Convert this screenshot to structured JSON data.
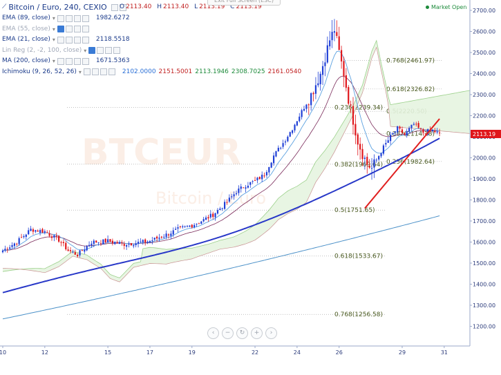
{
  "header": {
    "title": "Bitcoin / Euro, 240, CEXIO",
    "ohlc": [
      {
        "k": "O",
        "v": "2113.40"
      },
      {
        "k": "H",
        "v": "2113.40"
      },
      {
        "k": "L",
        "v": "2113.19"
      },
      {
        "k": "C",
        "v": "2113.19"
      }
    ],
    "market_status": "Market Open",
    "exit_fullscreen": "Exit Full Screen (ESC)"
  },
  "indicators": [
    {
      "label": "EMA (89, close)",
      "values": [
        "1982.6272"
      ],
      "active": true,
      "color": "#1a3a8a"
    },
    {
      "label": "EMA (55, close)",
      "values": [],
      "active": false,
      "color": "#a0a8b8"
    },
    {
      "label": "EMA (21, close)",
      "values": [
        "2118.5518"
      ],
      "active": true,
      "color": "#1a3a8a"
    },
    {
      "label": "Lin Reg (2, -2, 100, close)",
      "values": [],
      "active": false,
      "color": "#a0a8b8"
    },
    {
      "label": "MA (200, close)",
      "values": [
        "1671.5363"
      ],
      "active": true,
      "color": "#1a3a8a"
    },
    {
      "label": "Ichimoku (9, 26, 52, 26)",
      "values": [
        "2102.0000",
        "2151.5001",
        "2113.1946",
        "2308.7025",
        "2161.0540"
      ],
      "active": true,
      "color": "#1a3a8a"
    }
  ],
  "nav_buttons": [
    "zoom-out",
    "zoom-in",
    "reset",
    "scroll-left",
    "scroll-right"
  ],
  "chart_data": {
    "type": "candlestick",
    "symbol": "BTCEUR",
    "watermark": "BTCEUR",
    "watermark_sub": "Bitcoin / Euro",
    "ylim": [
      1115,
      2730
    ],
    "y_ticks": [
      1200,
      1300,
      1400,
      1500,
      1600,
      1700,
      1800,
      1900,
      2000,
      2100,
      2200,
      2300,
      2400,
      2500,
      2600,
      2700
    ],
    "y_tick_labels": [
      "1200.00",
      "1300.00",
      "1400.00",
      "1500.00",
      "1600.00",
      "1700.00",
      "1800.00",
      "1900.00",
      "2000.00",
      "2100.00",
      "2200.00",
      "2300.00",
      "2400.00",
      "2500.00",
      "2600.00",
      "2700.00"
    ],
    "x_ticks": [
      {
        "i": 0,
        "label": "10"
      },
      {
        "i": 18,
        "label": "12"
      },
      {
        "i": 45,
        "label": "15"
      },
      {
        "i": 63,
        "label": "17"
      },
      {
        "i": 81,
        "label": "19"
      },
      {
        "i": 108,
        "label": "22"
      },
      {
        "i": 126,
        "label": "24"
      },
      {
        "i": 144,
        "label": "26"
      },
      {
        "i": 171,
        "label": "29"
      },
      {
        "i": 189,
        "label": "31"
      }
    ],
    "last_price": "2113.19",
    "last_price_value": 2113.19,
    "fib_upper": [
      {
        "label": "0.236(2239.34)",
        "value": 2239.34
      },
      {
        "label": "0.382(1969.64)",
        "value": 1969.64
      },
      {
        "label": "0.5(1751.65)",
        "value": 1751.65
      },
      {
        "label": "0.618(1533.67)",
        "value": 1533.67
      },
      {
        "label": "0.768(1256.58)",
        "value": 1256.58
      }
    ],
    "fib_lower": [
      {
        "label": "0.768(2461.97)",
        "value": 2461.97
      },
      {
        "label": "0.618(2326.82)",
        "value": 2326.82
      },
      {
        "label": "0.5(2220.50)",
        "value": 2220.5
      },
      {
        "label": "0.382(2114.18)",
        "value": 2114.18
      },
      {
        "label": "0.236(1982.64)",
        "value": 1982.64
      }
    ],
    "trendline": {
      "from": {
        "i": 155,
        "price": 1760
      },
      "to": {
        "i": 187,
        "price": 2185
      },
      "color": "#e02020"
    },
    "colors": {
      "up": "#1f3fd6",
      "down": "#e0161b",
      "ema89": "#2838c8",
      "ema21": "#5aa0e0",
      "ma200": "#4a90c8",
      "cloud": "#e6f4e0",
      "cloud_edge": "#9bd08a",
      "kijun": "#a04040",
      "fib": "#555555"
    }
  }
}
